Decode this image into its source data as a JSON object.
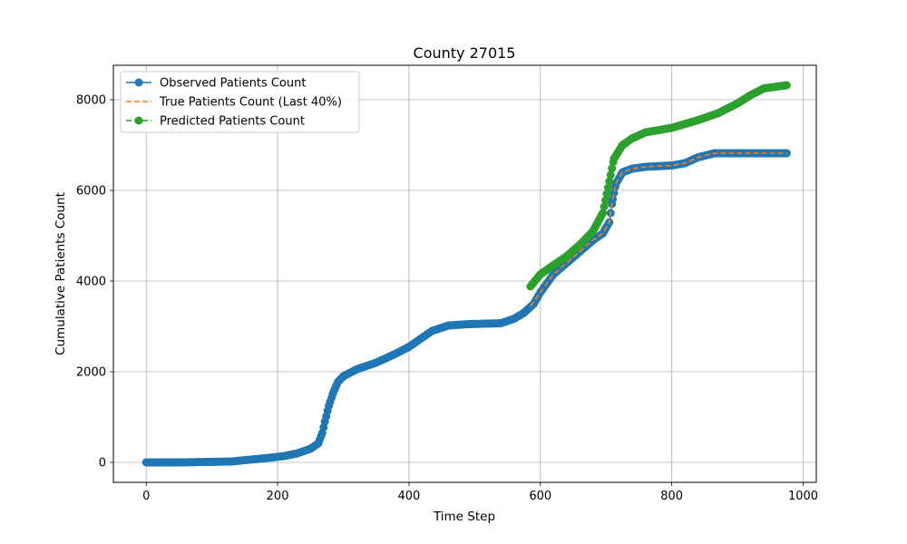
{
  "chart_data": {
    "type": "line",
    "title": "County 27015",
    "xlabel": "Time Step",
    "ylabel": "Cumulative Patients Count",
    "xlim": [
      -50,
      1020
    ],
    "ylim": [
      -440,
      8760
    ],
    "xticks": [
      0,
      200,
      400,
      600,
      800,
      1000
    ],
    "yticks": [
      0,
      2000,
      4000,
      6000,
      8000
    ],
    "grid": true,
    "legend_position": "top-left",
    "series": [
      {
        "name": "Observed Patients Count",
        "style": "solid-marker",
        "color": "#1f77b4",
        "points": [
          [
            0,
            0
          ],
          [
            50,
            0
          ],
          [
            90,
            10
          ],
          [
            130,
            20
          ],
          [
            150,
            50
          ],
          [
            180,
            90
          ],
          [
            210,
            140
          ],
          [
            230,
            200
          ],
          [
            250,
            300
          ],
          [
            262,
            420
          ],
          [
            268,
            650
          ],
          [
            272,
            900
          ],
          [
            278,
            1250
          ],
          [
            285,
            1550
          ],
          [
            292,
            1780
          ],
          [
            300,
            1900
          ],
          [
            320,
            2050
          ],
          [
            350,
            2200
          ],
          [
            380,
            2400
          ],
          [
            400,
            2550
          ],
          [
            420,
            2750
          ],
          [
            435,
            2900
          ],
          [
            460,
            3020
          ],
          [
            490,
            3050
          ],
          [
            540,
            3070
          ],
          [
            560,
            3170
          ],
          [
            575,
            3300
          ],
          [
            590,
            3500
          ],
          [
            600,
            3750
          ],
          [
            610,
            3950
          ],
          [
            620,
            4150
          ],
          [
            640,
            4400
          ],
          [
            660,
            4650
          ],
          [
            680,
            4900
          ],
          [
            695,
            5050
          ],
          [
            705,
            5300
          ],
          [
            710,
            5800
          ],
          [
            715,
            6150
          ],
          [
            725,
            6400
          ],
          [
            740,
            6480
          ],
          [
            760,
            6520
          ],
          [
            800,
            6550
          ],
          [
            820,
            6600
          ],
          [
            840,
            6730
          ],
          [
            865,
            6820
          ],
          [
            900,
            6820
          ],
          [
            975,
            6820
          ]
        ]
      },
      {
        "name": "True Patients Count (Last 40%)",
        "style": "dashed",
        "color": "#ff7f0e",
        "points": [
          [
            585,
            3450
          ],
          [
            600,
            3750
          ],
          [
            610,
            3950
          ],
          [
            620,
            4150
          ],
          [
            640,
            4400
          ],
          [
            660,
            4650
          ],
          [
            680,
            4900
          ],
          [
            695,
            5050
          ],
          [
            705,
            5300
          ],
          [
            710,
            5800
          ],
          [
            715,
            6150
          ],
          [
            725,
            6400
          ],
          [
            740,
            6480
          ],
          [
            760,
            6520
          ],
          [
            800,
            6550
          ],
          [
            820,
            6600
          ],
          [
            840,
            6730
          ],
          [
            865,
            6820
          ],
          [
            900,
            6820
          ],
          [
            975,
            6820
          ]
        ]
      },
      {
        "name": "Predicted Patients Count",
        "style": "dashed-marker",
        "color": "#2ca02c",
        "points": [
          [
            585,
            3880
          ],
          [
            600,
            4150
          ],
          [
            620,
            4350
          ],
          [
            640,
            4550
          ],
          [
            660,
            4800
          ],
          [
            680,
            5100
          ],
          [
            695,
            5500
          ],
          [
            705,
            6200
          ],
          [
            712,
            6700
          ],
          [
            725,
            7000
          ],
          [
            740,
            7150
          ],
          [
            760,
            7280
          ],
          [
            800,
            7380
          ],
          [
            840,
            7550
          ],
          [
            870,
            7700
          ],
          [
            900,
            7920
          ],
          [
            920,
            8100
          ],
          [
            940,
            8250
          ],
          [
            975,
            8320
          ]
        ]
      }
    ]
  }
}
